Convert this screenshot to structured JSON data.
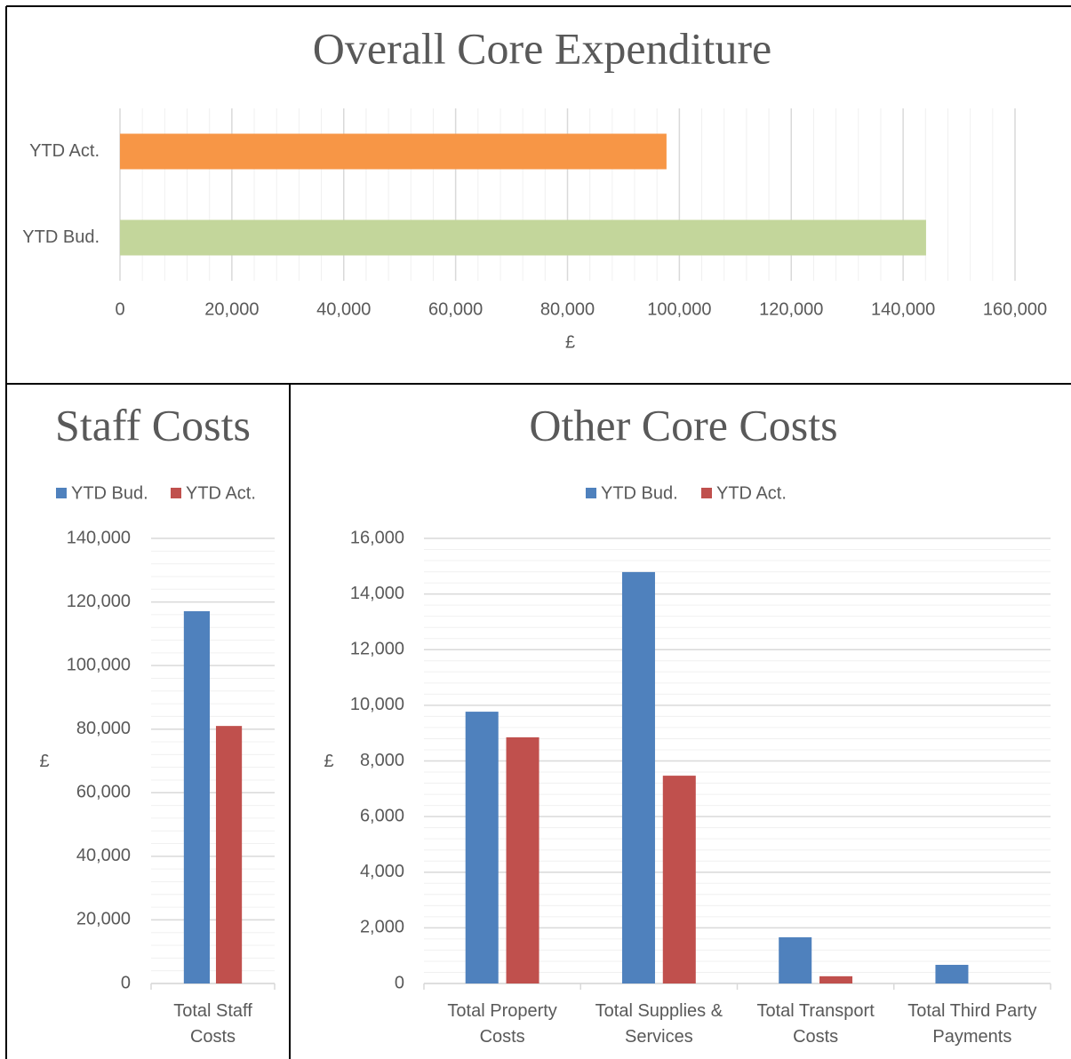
{
  "chart_data": [
    {
      "type": "hbar",
      "title": "Overall Core Expenditure",
      "categories": [
        "YTD Act.",
        "YTD Bud."
      ],
      "values": [
        97700,
        144100
      ],
      "colors": [
        "#f79646",
        "#c3d69b"
      ],
      "xlim": [
        0,
        160000
      ],
      "xticks": [
        0,
        {
          "value": 20000,
          "label": "20,000"
        },
        {
          "value": 40000,
          "label": "40,000"
        },
        {
          "value": 60000,
          "label": "60,000"
        },
        {
          "value": 80000,
          "label": "80,000"
        },
        {
          "value": 100000,
          "label": "100,000"
        },
        {
          "value": 120000,
          "label": "120,000"
        },
        {
          "value": 140000,
          "label": "140,000"
        },
        {
          "value": 160000,
          "label": "160,000"
        }
      ],
      "xlabel": "£",
      "grid": true,
      "minor_grid_divisions": 5
    },
    {
      "type": "bar",
      "title": "Staff Costs",
      "categories": [
        "Total Staff Costs"
      ],
      "series": [
        {
          "name": "YTD Bud.",
          "color": "#4f81bd",
          "values": [
            117100
          ]
        },
        {
          "name": "YTD Act.",
          "color": "#c0504d",
          "values": [
            81000
          ]
        }
      ],
      "ylim": [
        0,
        140000
      ],
      "yticks": [
        0,
        {
          "value": 20000,
          "label": "20,000"
        },
        {
          "value": 40000,
          "label": "40,000"
        },
        {
          "value": 60000,
          "label": "60,000"
        },
        {
          "value": 80000,
          "label": "80,000"
        },
        {
          "value": 100000,
          "label": "100,000"
        },
        {
          "value": 120000,
          "label": "120,000"
        },
        {
          "value": 140000,
          "label": "140,000"
        }
      ],
      "ylabel": "£",
      "grid": true,
      "minor_grid_divisions": 5,
      "legend": "top"
    },
    {
      "type": "bar",
      "title": "Other Core Costs",
      "categories": [
        "Total Property Costs",
        "Total Supplies & Services",
        "Total Transport Costs",
        "Total Third Party Payments"
      ],
      "series": [
        {
          "name": "YTD Bud.",
          "color": "#4f81bd",
          "values": [
            9770,
            14790,
            1660,
            670
          ]
        },
        {
          "name": "YTD Act.",
          "color": "#c0504d",
          "values": [
            8850,
            7470,
            260,
            0
          ]
        }
      ],
      "ylim": [
        0,
        16000
      ],
      "yticks": [
        0,
        {
          "value": 2000,
          "label": "2,000"
        },
        {
          "value": 4000,
          "label": "4,000"
        },
        {
          "value": 6000,
          "label": "6,000"
        },
        {
          "value": 8000,
          "label": "8,000"
        },
        {
          "value": 10000,
          "label": "10,000"
        },
        {
          "value": 12000,
          "label": "12,000"
        },
        {
          "value": 14000,
          "label": "14,000"
        },
        {
          "value": 16000,
          "label": "16,000"
        }
      ],
      "ylabel": "£",
      "grid": true,
      "minor_grid_divisions": 5,
      "legend": "top"
    }
  ]
}
